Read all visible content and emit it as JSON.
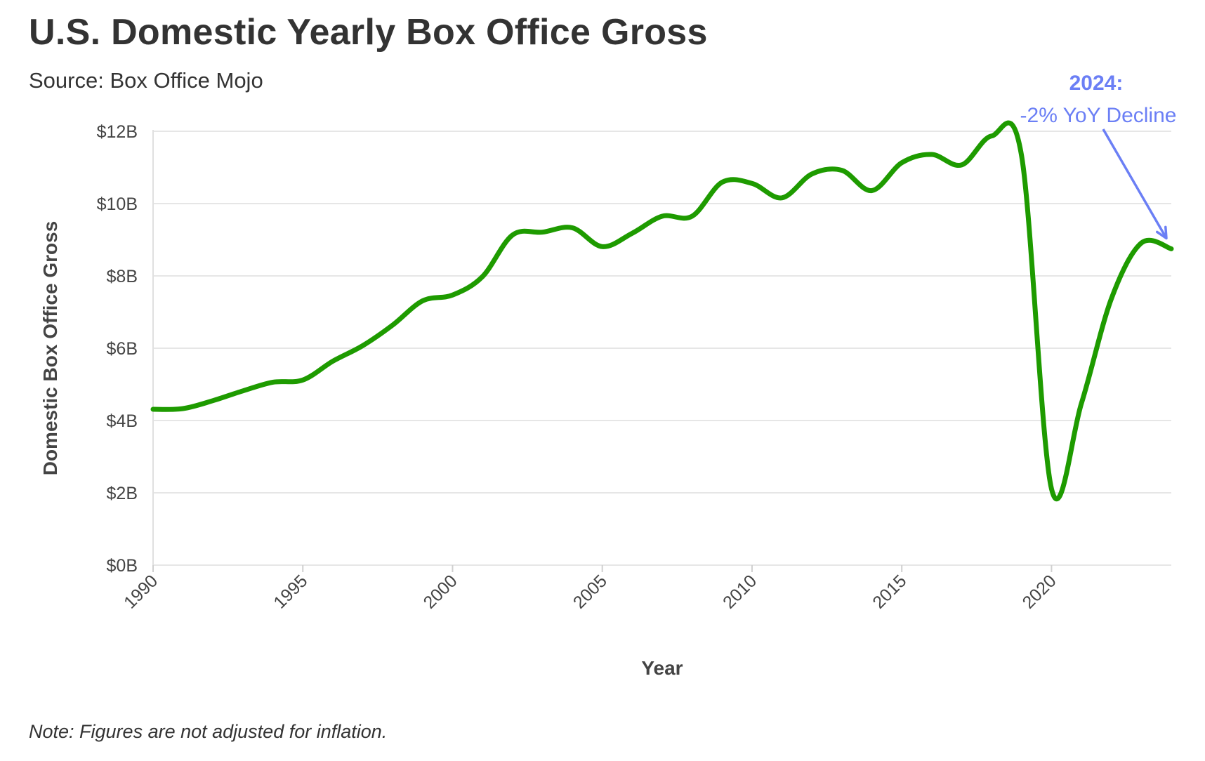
{
  "title": "U.S. Domestic Yearly Box Office Gross",
  "subtitle": "Source: Box Office Mojo",
  "note": "Note: Figures are not adjusted for inflation.",
  "colors": {
    "line": "#1e9b00",
    "annotation": "#6b7ff5",
    "grid": "#e6e6e6",
    "text": "#333333"
  },
  "chart_data": {
    "type": "line",
    "xlabel": "Year",
    "ylabel": "Domestic Box Office Gross",
    "xlim": [
      1990,
      2024
    ],
    "ylim": [
      0,
      12
    ],
    "y_unit": "billions USD",
    "grid": true,
    "x_ticks": [
      1990,
      1995,
      2000,
      2005,
      2010,
      2015,
      2020
    ],
    "y_ticks": [
      0,
      2,
      4,
      6,
      8,
      10,
      12
    ],
    "y_tick_labels": [
      "$0B",
      "$2B",
      "$4B",
      "$6B",
      "$8B",
      "$10B",
      "$12B"
    ],
    "x": [
      1990,
      1991,
      1992,
      1993,
      1994,
      1995,
      1996,
      1997,
      1998,
      1999,
      2000,
      2001,
      2002,
      2003,
      2004,
      2005,
      2006,
      2007,
      2008,
      2009,
      2010,
      2011,
      2012,
      2013,
      2014,
      2015,
      2016,
      2017,
      2018,
      2019,
      2020,
      2021,
      2022,
      2023,
      2024
    ],
    "values": [
      4.31,
      4.33,
      4.55,
      4.82,
      5.06,
      5.12,
      5.64,
      6.07,
      6.64,
      7.31,
      7.47,
      7.98,
      9.13,
      9.21,
      9.33,
      8.81,
      9.18,
      9.65,
      9.65,
      10.59,
      10.56,
      10.16,
      10.82,
      10.92,
      10.36,
      11.13,
      11.36,
      11.07,
      11.87,
      11.32,
      2.11,
      4.48,
      7.37,
      8.91,
      8.75
    ],
    "annotation": {
      "title": "2024:",
      "text": "-2% YoY Decline"
    }
  }
}
